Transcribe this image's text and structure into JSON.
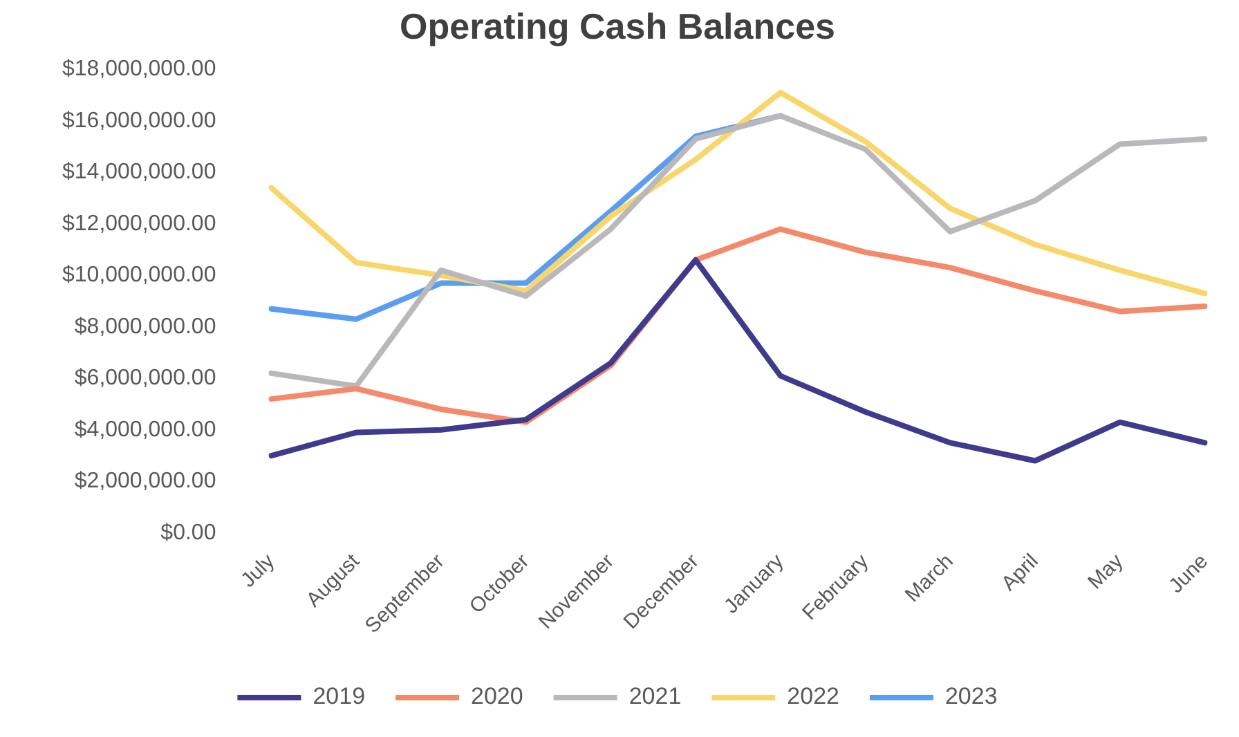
{
  "chart_data": {
    "type": "line",
    "title": "Operating Cash Balances",
    "categories": [
      "July",
      "August",
      "September",
      "October",
      "November",
      "December",
      "January",
      "February",
      "March",
      "April",
      "May",
      "June"
    ],
    "series": [
      {
        "name": "2019",
        "color": "#3f3a8c",
        "values": [
          3000000,
          3900000,
          4000000,
          4400000,
          6600000,
          10600000,
          6100000,
          4700000,
          3500000,
          2800000,
          4300000,
          3500000
        ]
      },
      {
        "name": "2020",
        "color": "#f4896b",
        "values": [
          5200000,
          5600000,
          4800000,
          4300000,
          6500000,
          10600000,
          11800000,
          10900000,
          10300000,
          9400000,
          8600000,
          8800000
        ]
      },
      {
        "name": "2021",
        "color": "#b9b9bd",
        "values": [
          6200000,
          5700000,
          10200000,
          9200000,
          11800000,
          15300000,
          16200000,
          14900000,
          11700000,
          12900000,
          15100000,
          15300000
        ]
      },
      {
        "name": "2022",
        "color": "#f9d66b",
        "values": [
          13400000,
          10500000,
          10000000,
          9400000,
          12300000,
          14500000,
          17100000,
          15200000,
          12600000,
          11200000,
          10200000,
          9300000
        ]
      },
      {
        "name": "2023",
        "color": "#5b9ef0",
        "values": [
          8700000,
          8300000,
          9700000,
          9700000,
          12500000,
          15400000,
          16200000,
          null,
          null,
          null,
          null,
          null
        ]
      }
    ],
    "ylim": [
      0,
      18000000
    ],
    "yticks": [
      {
        "value": 0,
        "label": "$0.00"
      },
      {
        "value": 2000000,
        "label": "$2,000,000.00"
      },
      {
        "value": 4000000,
        "label": "$4,000,000.00"
      },
      {
        "value": 6000000,
        "label": "$6,000,000.00"
      },
      {
        "value": 8000000,
        "label": "$8,000,000.00"
      },
      {
        "value": 10000000,
        "label": "$10,000,000.00"
      },
      {
        "value": 12000000,
        "label": "$12,000,000.00"
      },
      {
        "value": 14000000,
        "label": "$14,000,000.00"
      },
      {
        "value": 16000000,
        "label": "$16,000,000.00"
      },
      {
        "value": 18000000,
        "label": "$18,000,000.00"
      }
    ],
    "grid": false,
    "legend": "bottom",
    "marker": "none",
    "line_style": "solid"
  }
}
